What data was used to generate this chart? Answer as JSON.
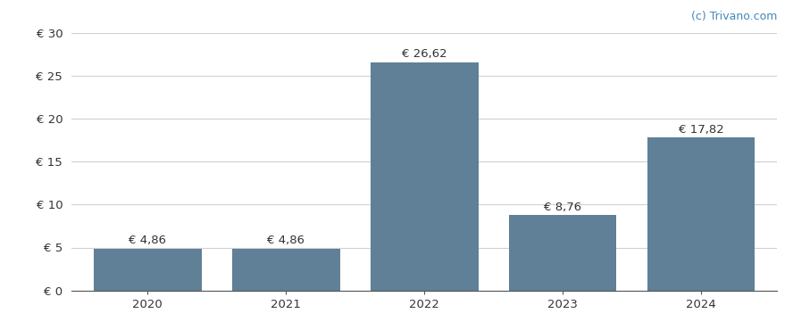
{
  "categories": [
    "2020",
    "2021",
    "2022",
    "2023",
    "2024"
  ],
  "values": [
    4.86,
    4.86,
    26.62,
    8.76,
    17.82
  ],
  "bar_color": "#5f8096",
  "bar_labels": [
    "€ 4,86",
    "€ 4,86",
    "€ 26,62",
    "€ 8,76",
    "€ 17,82"
  ],
  "ylim": [
    0,
    30
  ],
  "yticks": [
    0,
    5,
    10,
    15,
    20,
    25,
    30
  ],
  "ytick_labels": [
    "€ 0",
    "€ 5",
    "€ 10",
    "€ 15",
    "€ 20",
    "€ 25",
    "€ 30"
  ],
  "watermark": "(c) Trivano.com",
  "background_color": "#ffffff",
  "grid_color": "#d0d0d0",
  "label_fontsize": 9.5,
  "tick_fontsize": 9.5,
  "watermark_fontsize": 9,
  "bar_width": 0.78
}
